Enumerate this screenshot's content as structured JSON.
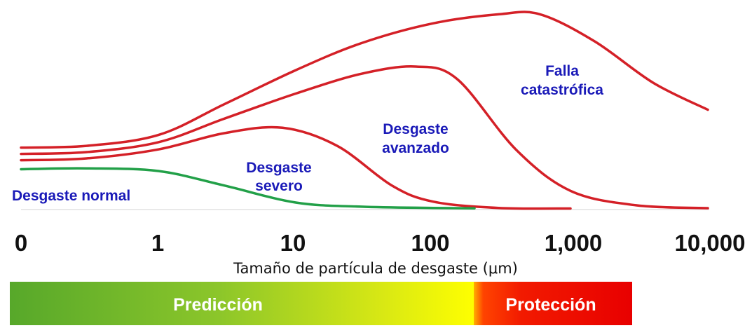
{
  "chart_data": {
    "type": "area",
    "x_scale": "log",
    "x_ticks": [
      {
        "value": 0,
        "label": "0"
      },
      {
        "value": 1,
        "label": "1"
      },
      {
        "value": 10,
        "label": "10"
      },
      {
        "value": 100,
        "label": "100"
      },
      {
        "value": 1000,
        "label": "1,000"
      },
      {
        "value": 10000,
        "label": "10,000"
      }
    ],
    "xlabel": "Tamaño de partícula de desgaste (μm)",
    "ylabel": "",
    "title": "",
    "grid": false,
    "colors": {
      "normal": "#22a048",
      "wear": "#d42027",
      "label": "#1a1ab8",
      "tick": "#111111"
    },
    "curves": [
      {
        "name": "Desgaste normal",
        "color": "#22a048",
        "points": [
          [
            0,
            0.22
          ],
          [
            0.3,
            0.225
          ],
          [
            1,
            0.21
          ],
          [
            3,
            0.13
          ],
          [
            10,
            0.035
          ],
          [
            30,
            0.012
          ],
          [
            100,
            0.005
          ],
          [
            200,
            0.003
          ]
        ]
      },
      {
        "name": "Desgaste severo",
        "color": "#d42027",
        "points": [
          [
            0,
            0.27
          ],
          [
            0.3,
            0.28
          ],
          [
            1,
            0.33
          ],
          [
            3,
            0.42
          ],
          [
            8,
            0.45
          ],
          [
            20,
            0.35
          ],
          [
            50,
            0.13
          ],
          [
            100,
            0.04
          ],
          [
            300,
            0.005
          ],
          [
            1000,
            0.002
          ]
        ]
      },
      {
        "name": "Desgaste avanzado",
        "color": "#d42027",
        "points": [
          [
            0,
            0.305
          ],
          [
            0.3,
            0.315
          ],
          [
            1,
            0.37
          ],
          [
            3,
            0.5
          ],
          [
            10,
            0.64
          ],
          [
            30,
            0.75
          ],
          [
            75,
            0.79
          ],
          [
            150,
            0.72
          ],
          [
            400,
            0.33
          ],
          [
            1000,
            0.1
          ],
          [
            3000,
            0.02
          ],
          [
            10000,
            0.004
          ]
        ]
      },
      {
        "name": "Falla catastrófica",
        "color": "#d42027",
        "points": [
          [
            0,
            0.34
          ],
          [
            0.3,
            0.35
          ],
          [
            1,
            0.41
          ],
          [
            3,
            0.58
          ],
          [
            10,
            0.77
          ],
          [
            30,
            0.92
          ],
          [
            100,
            1.03
          ],
          [
            300,
            1.08
          ],
          [
            600,
            1.08
          ],
          [
            1500,
            0.93
          ],
          [
            4000,
            0.7
          ],
          [
            10000,
            0.55
          ]
        ]
      }
    ],
    "annotations": [
      {
        "lines": [
          "Desgaste normal"
        ]
      },
      {
        "lines": [
          "Desgaste",
          "severo"
        ]
      },
      {
        "lines": [
          "Desgaste",
          "avanzado"
        ]
      },
      {
        "lines": [
          "Falla",
          "catastrófica"
        ]
      }
    ],
    "band": {
      "segments": [
        {
          "label": "Predicción",
          "from": 0,
          "to": 200,
          "colors": [
            "#57a82a",
            "#b6d81c",
            "#ffff00"
          ]
        },
        {
          "label": "Protección",
          "from": 200,
          "to": 2500,
          "colors": [
            "#ff8800",
            "#ff2a00",
            "#e80000"
          ]
        }
      ]
    }
  }
}
